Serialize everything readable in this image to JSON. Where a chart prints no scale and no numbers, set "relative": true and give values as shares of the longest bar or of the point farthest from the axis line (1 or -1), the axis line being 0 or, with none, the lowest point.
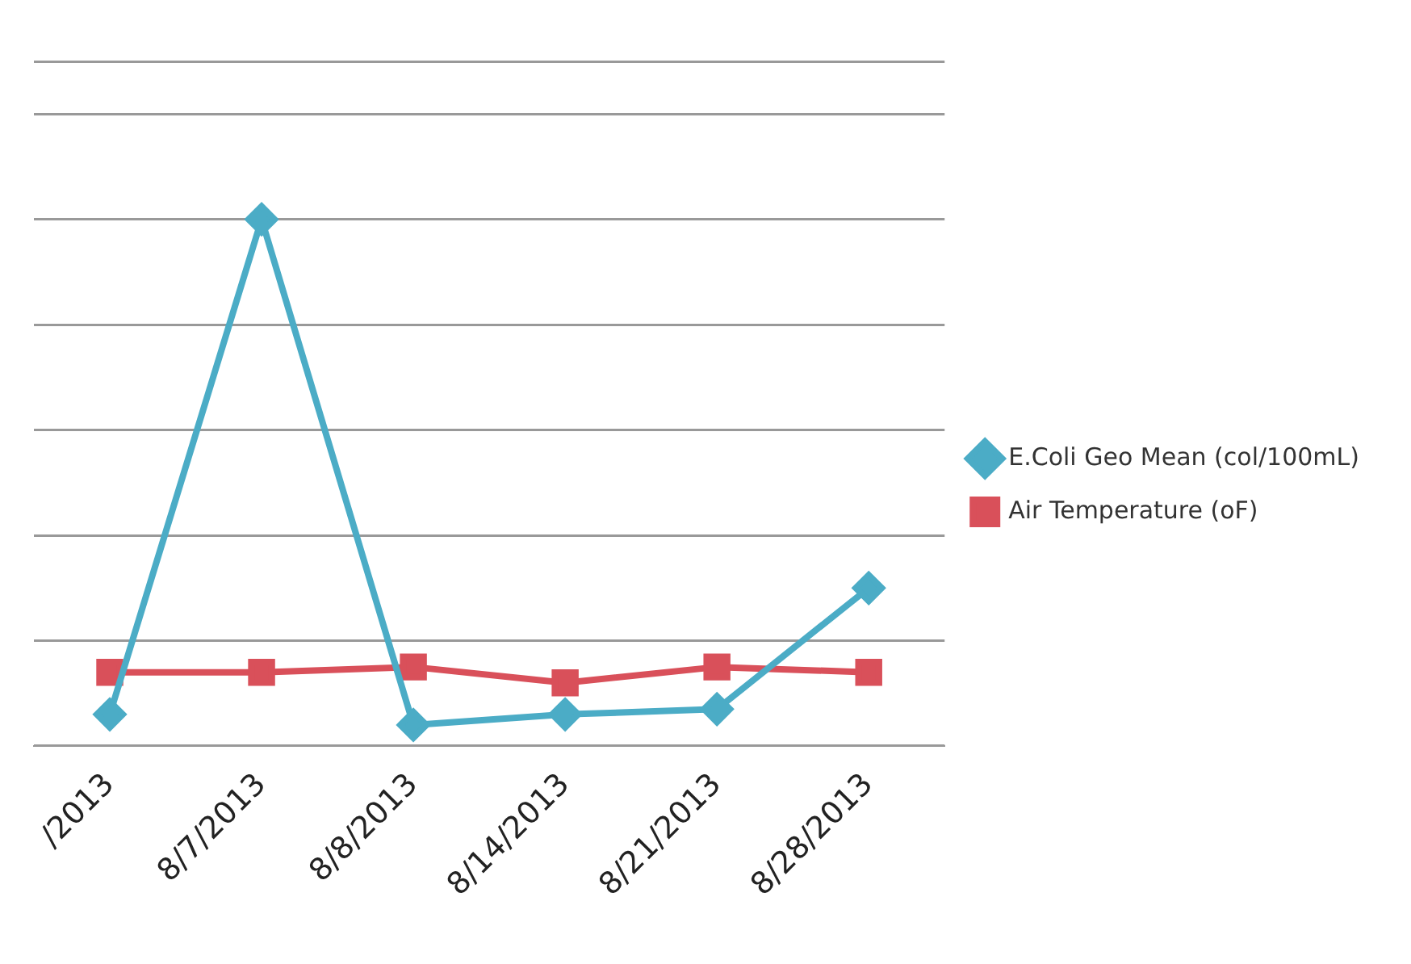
{
  "chart_data": {
    "type": "line",
    "relative": true,
    "categories": [
      "/2013",
      "8/7/2013",
      "8/8/2013",
      "8/14/2013",
      "8/21/2013",
      "8/28/2013"
    ],
    "series": [
      {
        "name": "E.Coli Geo Mean (col/100mL)",
        "color": "#4bacc6",
        "marker": "diamond",
        "values": [
          0.06,
          1,
          0.04,
          0.06,
          0.07,
          0.3
        ]
      },
      {
        "name": "Air Temperature (oF)",
        "color": "#d9505a",
        "marker": "square",
        "values": [
          0.14,
          0.14,
          0.15,
          0.12,
          0.15,
          0.14
        ]
      }
    ],
    "grid": "y",
    "legend": "right"
  }
}
